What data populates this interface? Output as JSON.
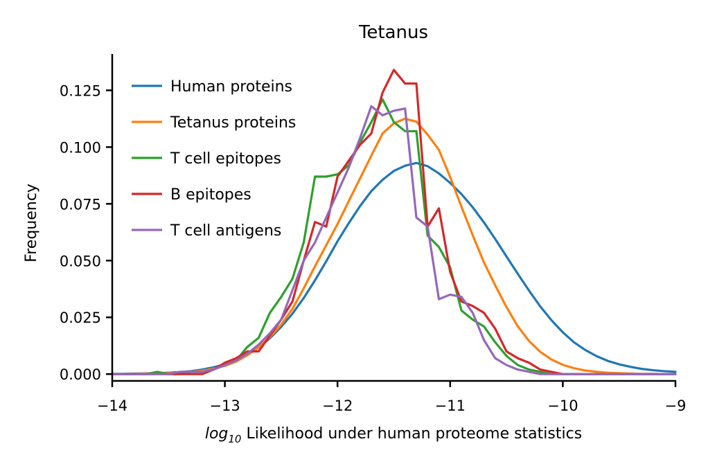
{
  "chart_data": {
    "type": "line",
    "title": "Tetanus",
    "xlabel_italic": "log",
    "xlabel_sub": "10",
    "xlabel_rest": " Likelihood under human proteome statistics",
    "ylabel": "Frequency",
    "xlim": [
      -14,
      -9
    ],
    "ylim": [
      -0.003,
      0.141
    ],
    "x_ticks": [
      -14,
      -13,
      -12,
      -11,
      -10,
      -9
    ],
    "x_tick_labels": [
      "−14",
      "−13",
      "−12",
      "−11",
      "−10",
      "−9"
    ],
    "y_ticks": [
      0,
      0.025,
      0.05,
      0.075,
      0.1,
      0.125
    ],
    "y_tick_labels": [
      "0.000",
      "0.025",
      "0.050",
      "0.075",
      "0.100",
      "0.125"
    ],
    "grid": false,
    "legend_position": "top-left",
    "x": [
      -14.0,
      -13.9,
      -13.8,
      -13.7,
      -13.6,
      -13.5,
      -13.4,
      -13.3,
      -13.2,
      -13.1,
      -13.0,
      -12.9,
      -12.8,
      -12.7,
      -12.6,
      -12.5,
      -12.4,
      -12.3,
      -12.2,
      -12.1,
      -12.0,
      -11.9,
      -11.8,
      -11.7,
      -11.6,
      -11.5,
      -11.4,
      -11.3,
      -11.2,
      -11.1,
      -11.0,
      -10.9,
      -10.8,
      -10.7,
      -10.6,
      -10.5,
      -10.4,
      -10.3,
      -10.2,
      -10.1,
      -10.0,
      -9.9,
      -9.8,
      -9.7,
      -9.6,
      -9.5,
      -9.4,
      -9.3,
      -9.2,
      -9.1,
      -9.0
    ],
    "series": [
      {
        "name": "Human proteins",
        "color": "#1f77b4",
        "values": [
          0.0001,
          0.0001,
          0.0002,
          0.0003,
          0.0004,
          0.0006,
          0.0009,
          0.0013,
          0.002,
          0.003,
          0.0043,
          0.006,
          0.0085,
          0.0117,
          0.0158,
          0.0208,
          0.0266,
          0.0335,
          0.0413,
          0.0497,
          0.0585,
          0.0665,
          0.074,
          0.0806,
          0.0856,
          0.0895,
          0.0918,
          0.093,
          0.0916,
          0.0884,
          0.0842,
          0.0793,
          0.0735,
          0.0668,
          0.0595,
          0.0518,
          0.0442,
          0.0368,
          0.0298,
          0.0237,
          0.0184,
          0.014,
          0.0106,
          0.0079,
          0.0058,
          0.0043,
          0.0032,
          0.0023,
          0.0017,
          0.0013,
          0.001
        ]
      },
      {
        "name": "Tetanus proteins",
        "color": "#ff7f0e",
        "values": [
          0.0,
          0.0,
          0.0001,
          0.0002,
          0.0003,
          0.0004,
          0.0006,
          0.001,
          0.0015,
          0.0024,
          0.0036,
          0.0055,
          0.0083,
          0.0118,
          0.0163,
          0.0218,
          0.0287,
          0.0378,
          0.0475,
          0.0568,
          0.0661,
          0.0762,
          0.0862,
          0.0962,
          0.106,
          0.1105,
          0.1125,
          0.1112,
          0.1055,
          0.0988,
          0.0868,
          0.0738,
          0.0612,
          0.0492,
          0.0391,
          0.0295,
          0.0211,
          0.0146,
          0.0098,
          0.0064,
          0.0041,
          0.0026,
          0.0016,
          0.001,
          0.0006,
          0.0004,
          0.0002,
          0.0001,
          0.0001,
          0.0,
          0.0
        ]
      },
      {
        "name": "T cell epitopes",
        "color": "#2ca02c",
        "values": [
          0.0,
          0.0,
          0.0,
          0.0,
          0.001,
          0.0,
          0.0,
          0.001,
          0.001,
          0.002,
          0.004,
          0.006,
          0.012,
          0.016,
          0.027,
          0.034,
          0.042,
          0.058,
          0.087,
          0.087,
          0.088,
          0.092,
          0.102,
          0.111,
          0.121,
          0.111,
          0.107,
          0.107,
          0.061,
          0.056,
          0.047,
          0.028,
          0.024,
          0.021,
          0.014,
          0.008,
          0.004,
          0.002,
          0.001,
          0.0,
          0.0,
          0.0,
          0.0,
          0.0,
          0.0,
          0.0,
          0.0,
          0.0,
          0.0,
          0.0,
          0.0
        ]
      },
      {
        "name": "B epitopes",
        "color": "#d62728",
        "values": [
          0.0,
          0.0,
          0.0,
          0.0,
          0.0,
          0.0,
          0.0,
          0.0,
          0.0,
          0.002,
          0.005,
          0.007,
          0.01,
          0.01,
          0.017,
          0.024,
          0.032,
          0.05,
          0.067,
          0.065,
          0.087,
          0.094,
          0.101,
          0.106,
          0.124,
          0.134,
          0.128,
          0.128,
          0.065,
          0.073,
          0.045,
          0.032,
          0.03,
          0.027,
          0.02,
          0.01,
          0.007,
          0.005,
          0.002,
          0.001,
          0.0,
          0.0,
          0.0,
          0.0,
          0.0,
          0.0,
          0.0,
          0.0,
          0.0,
          0.0,
          0.0
        ]
      },
      {
        "name": "T cell antigens",
        "color": "#9467bd",
        "values": [
          0.0,
          0.0,
          0.0,
          0.0,
          0.0,
          0.0,
          0.001,
          0.001,
          0.001,
          0.002,
          0.004,
          0.006,
          0.009,
          0.013,
          0.018,
          0.024,
          0.037,
          0.05,
          0.058,
          0.069,
          0.08,
          0.091,
          0.104,
          0.118,
          0.114,
          0.116,
          0.117,
          0.069,
          0.065,
          0.033,
          0.035,
          0.034,
          0.027,
          0.015,
          0.007,
          0.004,
          0.002,
          0.001,
          0.0,
          0.0,
          0.0,
          0.0,
          0.0,
          0.0,
          0.0,
          0.0,
          0.0,
          0.0,
          0.0,
          0.0,
          0.0
        ]
      }
    ]
  }
}
